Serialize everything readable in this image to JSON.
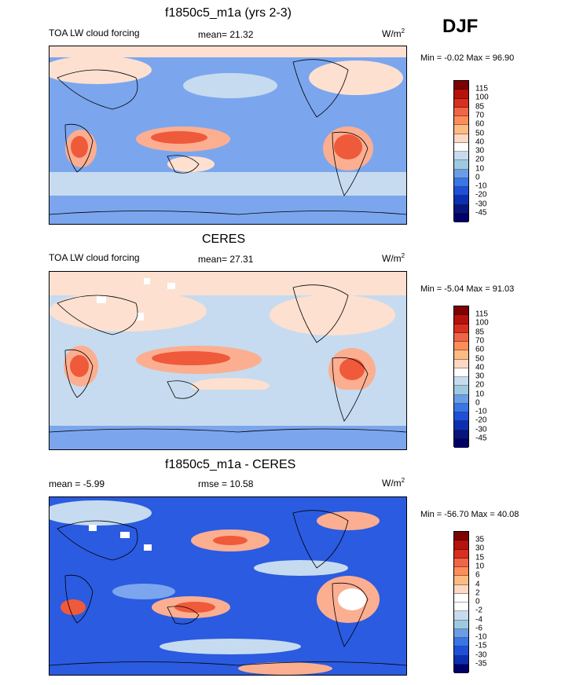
{
  "season": "DJF",
  "panels": [
    {
      "title": "f1850c5_m1a (yrs 2-3)",
      "variable": "TOA LW cloud forcing",
      "stat": "mean=  21.32",
      "units_base": "W/m",
      "units_exp": "2",
      "minmax": "Min =  -0.02 Max =  96.90",
      "levels": [
        "115",
        "100",
        "85",
        "70",
        "60",
        "50",
        "40",
        "30",
        "20",
        "10",
        "0",
        "-10",
        "-20",
        "-30",
        "-45"
      ]
    },
    {
      "title": "CERES",
      "variable": "TOA LW cloud forcing",
      "stat": "mean=  27.31",
      "units_base": "W/m",
      "units_exp": "2",
      "minmax": "Min =  -5.04 Max =  91.03",
      "levels": [
        "115",
        "100",
        "85",
        "70",
        "60",
        "50",
        "40",
        "30",
        "20",
        "10",
        "0",
        "-10",
        "-20",
        "-30",
        "-45"
      ]
    },
    {
      "title": "f1850c5_m1a - CERES",
      "variable": "mean =  -5.99",
      "stat": "rmse =  10.58",
      "units_base": "W/m",
      "units_exp": "2",
      "minmax": "Min = -56.70 Max =  40.08",
      "levels": [
        "35",
        "30",
        "15",
        "10",
        "6",
        "4",
        "2",
        "0",
        "-2",
        "-4",
        "-6",
        "-10",
        "-15",
        "-30",
        "-35"
      ]
    }
  ],
  "colors": {
    "abs_scale": [
      "#7f0000",
      "#b5120b",
      "#d7301f",
      "#ef6548",
      "#fc8d59",
      "#fdbb84",
      "#fdd9c4",
      "#ffffff",
      "#c6dbef",
      "#9ecae1",
      "#6b9ce8",
      "#3a75e6",
      "#1f4fd8",
      "#0c2fb0",
      "#08157a",
      "#000066"
    ],
    "diff_scale": [
      "#7f0000",
      "#b5120b",
      "#d7301f",
      "#ef6548",
      "#fc8d59",
      "#fdbb84",
      "#fdd9c4",
      "#ffffff",
      "#ffffff",
      "#c6dbef",
      "#9ecae1",
      "#6b9ce8",
      "#3a75e6",
      "#1f4fd8",
      "#0c2fb0",
      "#000066"
    ],
    "base_cool": "#7ba6ee",
    "light_blue": "#c6dbef",
    "warm_light": "#fde0d0",
    "warm_mid": "#fcae91",
    "warm_hot": "#ef5a3a",
    "deep_blue": "#2b5be0"
  }
}
